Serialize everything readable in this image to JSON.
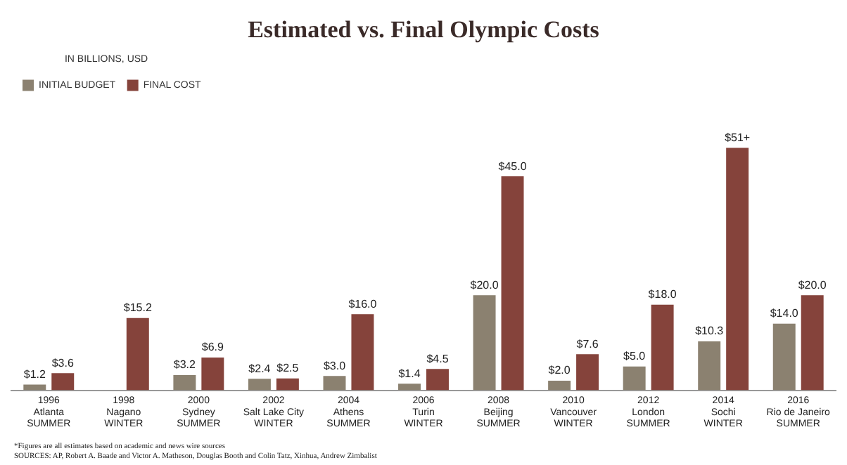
{
  "chart_data": {
    "type": "bar",
    "title": "Estimated vs. Final Olympic Costs",
    "categories": [
      "1996\nAtlanta\nSUMMER",
      "1998\nNagano\nWINTER",
      "2000\nSydney\nSUMMER",
      "2002\nSalt Lake City\nWINTER",
      "2004\nAthens\nSUMMER",
      "2006\nTurin\nWINTER",
      "2008\nBeijing\nSUMMER",
      "2010\nVancouver\nWINTER",
      "2012\nLondon\nSUMMER",
      "2014\nSochi\nWINTER",
      "2016\nRio de Janeiro\nSUMMER"
    ],
    "legend_title": "IN BILLIONS, USD",
    "series": [
      {
        "name": "INITIAL BUDGET",
        "color": "#8b8170",
        "values": [
          1.2,
          null,
          3.2,
          2.4,
          3.0,
          1.4,
          20.0,
          2.0,
          5.0,
          10.3,
          14.0
        ],
        "value_labels": [
          "$1.2",
          null,
          "$3.2",
          "$2.4",
          "$3.0",
          "$1.4",
          "$20.0",
          "$2.0",
          "$5.0",
          "$10.3",
          "$14.0"
        ]
      },
      {
        "name": "FINAL COST",
        "color": "#85433b",
        "values": [
          3.6,
          15.2,
          6.9,
          2.5,
          16.0,
          4.5,
          45.0,
          7.6,
          18.0,
          51,
          20.0
        ],
        "value_labels": [
          "$3.6",
          "$15.2",
          "$6.9",
          "$2.5",
          "$16.0",
          "$4.5",
          "$45.0",
          "$7.6",
          "$18.0",
          "$51+",
          "$20.0"
        ]
      }
    ],
    "legend": "top left",
    "grid": false,
    "annotations": [
      "*Figures are all estimates based on academic and news wire sources",
      "SOURCES: AP, Robert A. Baade and Victor A. Matheson, Douglas Booth and Colin Tatz, Xinhua, Andrew Zimbalist"
    ]
  }
}
